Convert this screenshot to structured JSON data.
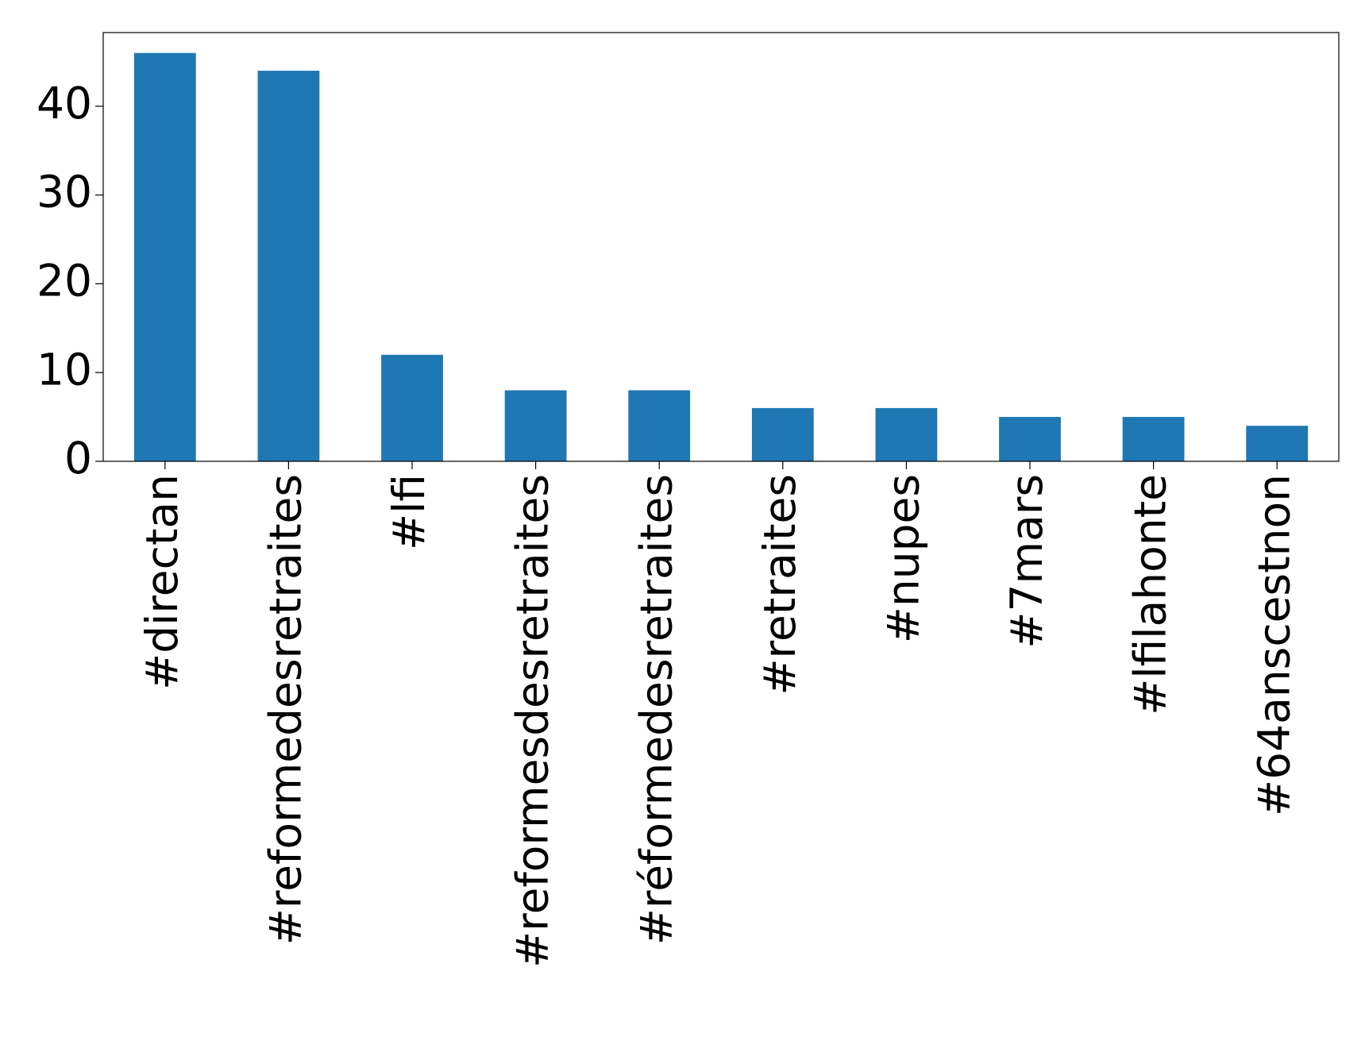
{
  "chart_data": {
    "type": "bar",
    "categories": [
      "#directan",
      "#reformedesretraites",
      "#lfi",
      "#reformesdesretraites",
      "#réformedesretraites",
      "#retraites",
      "#nupes",
      "#7mars",
      "#lfilahonte",
      "#64anscestnon"
    ],
    "values": [
      46,
      44,
      12,
      8,
      8,
      6,
      6,
      5,
      5,
      4
    ],
    "color": "#1f77b4",
    "ylim": [
      0,
      48.3
    ],
    "yticks": [
      0,
      10,
      20,
      30,
      40
    ],
    "grid": false
  }
}
